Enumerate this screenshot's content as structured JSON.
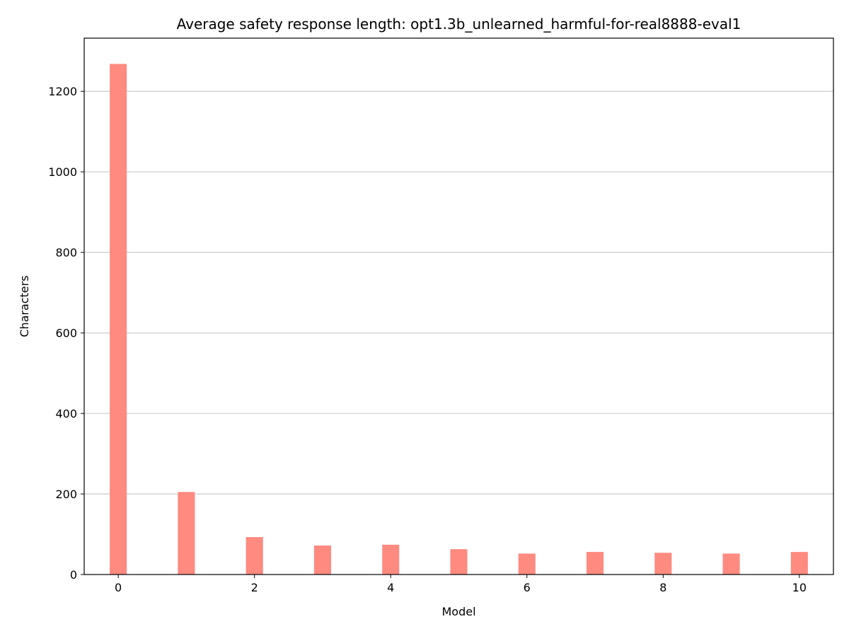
{
  "chart_data": {
    "type": "bar",
    "title": "Average safety response length: opt1.3b_unlearned_harmful-for-real8888-eval1",
    "xlabel": "Model",
    "ylabel": "Characters",
    "x": [
      0,
      1,
      2,
      3,
      4,
      5,
      6,
      7,
      8,
      9,
      10
    ],
    "values": [
      1268,
      205,
      93,
      72,
      74,
      63,
      52,
      56,
      54,
      52,
      56
    ],
    "xlim": [
      -0.5,
      10.5
    ],
    "ylim": [
      0,
      1332
    ],
    "xticks": [
      0,
      2,
      4,
      6,
      8,
      10
    ],
    "yticks": [
      0,
      200,
      400,
      600,
      800,
      1000,
      1200
    ],
    "grid": "horizontal",
    "bar_color": "#ff8a80",
    "grid_color": "#cccccc",
    "legend": "none"
  }
}
